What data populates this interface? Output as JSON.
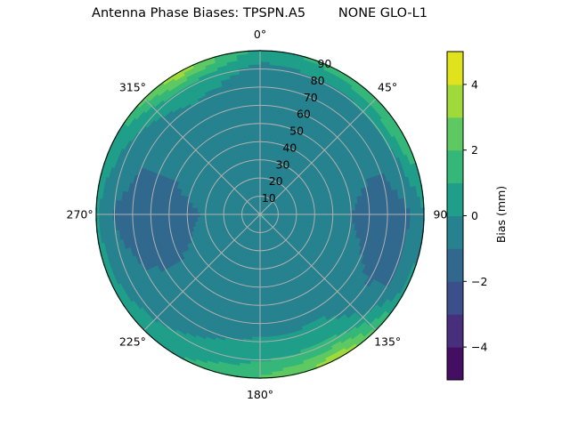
{
  "chart_data": {
    "type": "heatmap",
    "subtype": "polar-contourf",
    "title": "Antenna Phase Biases: TPSPN.A5        NONE GLO-L1",
    "theta_tick_labels": [
      "0°",
      "45°",
      "90",
      "135°",
      "180°",
      "225°",
      "270°",
      "315°"
    ],
    "r_tick_labels": [
      "10",
      "20",
      "30",
      "40",
      "50",
      "60",
      "70",
      "80",
      "90"
    ],
    "rlim": [
      0,
      90
    ],
    "theta_zero": "top",
    "theta_direction": "clockwise",
    "grid": true,
    "colorbar": {
      "label": "Bias (mm)",
      "range": [
        -5,
        5
      ],
      "levels": [
        -5,
        -4,
        -3,
        -2,
        -1,
        0,
        1,
        2,
        3,
        4,
        5
      ],
      "tick_labels": [
        "−4",
        "−2",
        "0",
        "2",
        "4"
      ],
      "ticks": [
        -4,
        -2,
        0,
        2,
        4
      ],
      "colormap": "viridis",
      "colors": [
        "#440f62",
        "#472f7d",
        "#3b4f8a",
        "#31688e",
        "#26828e",
        "#1f9e89",
        "#35b779",
        "#5ec962",
        "#9fda3a",
        "#e0e31c"
      ]
    },
    "azimuth": [
      0,
      30,
      60,
      90,
      120,
      150,
      180,
      210,
      240,
      270,
      300,
      330
    ],
    "zenith": [
      0,
      10,
      20,
      30,
      40,
      50,
      60,
      70,
      80,
      90
    ],
    "values": [
      [
        0.1,
        0.1,
        0.1,
        0.1,
        0.1,
        0.1,
        0.1,
        0.1,
        0.1,
        0.1,
        0.1,
        0.1
      ],
      [
        -0.5,
        -0.5,
        -0.5,
        -0.5,
        -0.2,
        -0.2,
        -0.5,
        -0.5,
        -0.5,
        -0.5,
        -0.5,
        -0.5
      ],
      [
        -0.5,
        -0.5,
        -0.5,
        -0.5,
        -0.5,
        -0.5,
        -0.5,
        -0.5,
        -0.5,
        -0.5,
        -0.5,
        -0.5
      ],
      [
        -0.5,
        -0.5,
        -0.5,
        -0.5,
        -0.5,
        -0.5,
        -0.5,
        -0.5,
        -0.6,
        -0.9,
        -0.6,
        -0.5
      ],
      [
        -0.5,
        -0.5,
        -0.5,
        -0.6,
        -0.5,
        -0.5,
        -0.5,
        -0.5,
        -0.9,
        -1.2,
        -0.7,
        -0.5
      ],
      [
        -0.5,
        -0.5,
        -0.6,
        -1.0,
        -0.7,
        -0.4,
        -0.5,
        -0.5,
        -1.0,
        -1.3,
        -0.9,
        -0.5
      ],
      [
        -0.5,
        -0.5,
        -0.7,
        -1.3,
        -0.9,
        -0.3,
        -0.6,
        -0.5,
        -1.0,
        -1.4,
        -0.9,
        -0.4
      ],
      [
        -0.6,
        -0.5,
        -0.8,
        -1.4,
        -1.1,
        0.2,
        0.2,
        -0.4,
        -0.9,
        -1.4,
        -0.8,
        -0.1
      ],
      [
        -0.3,
        -0.1,
        0.1,
        -1.2,
        -1.1,
        1.3,
        0.9,
        0.2,
        -0.5,
        -1.1,
        -0.2,
        0.9
      ],
      [
        0.5,
        1.5,
        2.2,
        -0.2,
        0.3,
        3.8,
        2.0,
        1.0,
        0.4,
        0.2,
        0.8,
        3.8
      ]
    ]
  }
}
